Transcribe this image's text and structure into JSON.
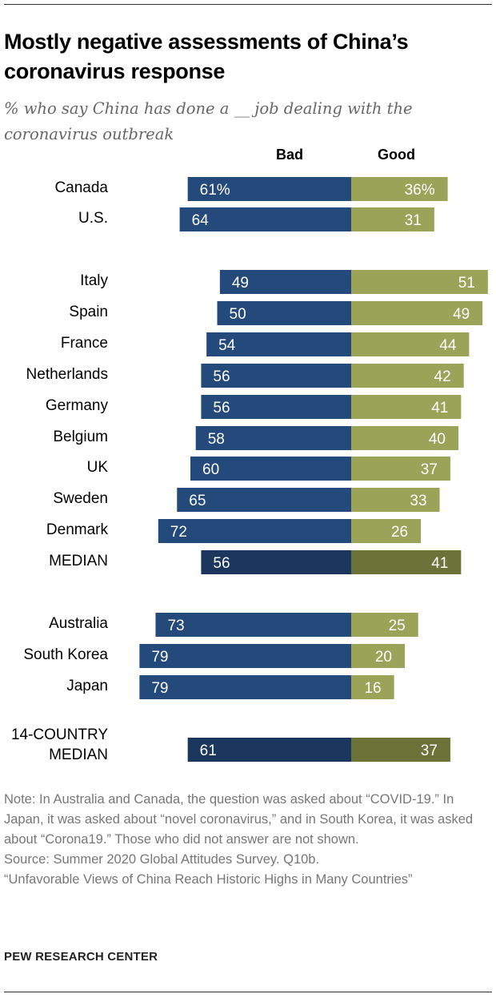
{
  "title": "Mostly negative assessments of China’s coronavirus response",
  "subtitle": "% who say China has done a __ job dealing with the coronavirus outbreak",
  "notes": [
    "Note: In Australia and Canada, the question was asked about “COVID-19.” In Japan, it was asked about “novel coronavirus,” and in South Korea, it was asked about “Corona19.” Those who did not answer are not shown.",
    "Source: Summer 2020 Global Attitudes Survey. Q10b.",
    "“Unfavorable Views of China Reach Historic Highs in Many Countries”"
  ],
  "brand": "PEW RESEARCH CENTER",
  "colors": {
    "bad": "#244a7c",
    "good": "#9aa357",
    "bad_median": "#1c375d",
    "good_median": "#6b7338"
  },
  "chart_data": {
    "type": "bar",
    "orientation": "horizontal-diverging",
    "series_names": [
      "Bad",
      "Good"
    ],
    "rows": [
      {
        "label": "Canada",
        "bad": 61,
        "good": 36,
        "bad_text": "61%",
        "good_text": "36%",
        "group": 0
      },
      {
        "label": "U.S.",
        "bad": 64,
        "good": 31,
        "bad_text": "64",
        "good_text": "31",
        "group": 0
      },
      {
        "label": "Italy",
        "bad": 49,
        "good": 51,
        "bad_text": "49",
        "good_text": "51",
        "group": 1
      },
      {
        "label": "Spain",
        "bad": 50,
        "good": 49,
        "bad_text": "50",
        "good_text": "49",
        "group": 1
      },
      {
        "label": "France",
        "bad": 54,
        "good": 44,
        "bad_text": "54",
        "good_text": "44",
        "group": 1
      },
      {
        "label": "Netherlands",
        "bad": 56,
        "good": 42,
        "bad_text": "56",
        "good_text": "42",
        "group": 1
      },
      {
        "label": "Germany",
        "bad": 56,
        "good": 41,
        "bad_text": "56",
        "good_text": "41",
        "group": 1
      },
      {
        "label": "Belgium",
        "bad": 58,
        "good": 40,
        "bad_text": "58",
        "good_text": "40",
        "group": 1
      },
      {
        "label": "UK",
        "bad": 60,
        "good": 37,
        "bad_text": "60",
        "good_text": "37",
        "group": 1
      },
      {
        "label": "Sweden",
        "bad": 65,
        "good": 33,
        "bad_text": "65",
        "good_text": "33",
        "group": 1
      },
      {
        "label": "Denmark",
        "bad": 72,
        "good": 26,
        "bad_text": "72",
        "good_text": "26",
        "group": 1
      },
      {
        "label": "MEDIAN",
        "bad": 56,
        "good": 41,
        "bad_text": "56",
        "good_text": "41",
        "group": 1,
        "median": true
      },
      {
        "label": "Australia",
        "bad": 73,
        "good": 25,
        "bad_text": "73",
        "good_text": "25",
        "group": 2
      },
      {
        "label": "South Korea",
        "bad": 79,
        "good": 20,
        "bad_text": "79",
        "good_text": "20",
        "group": 2
      },
      {
        "label": "Japan",
        "bad": 79,
        "good": 16,
        "bad_text": "79",
        "good_text": "16",
        "group": 2
      },
      {
        "label": "14-COUNTRY MEDIAN",
        "bad": 61,
        "good": 37,
        "bad_text": "61",
        "good_text": "37",
        "group": 3,
        "median": true
      }
    ],
    "xlim": [
      -100,
      100
    ]
  }
}
